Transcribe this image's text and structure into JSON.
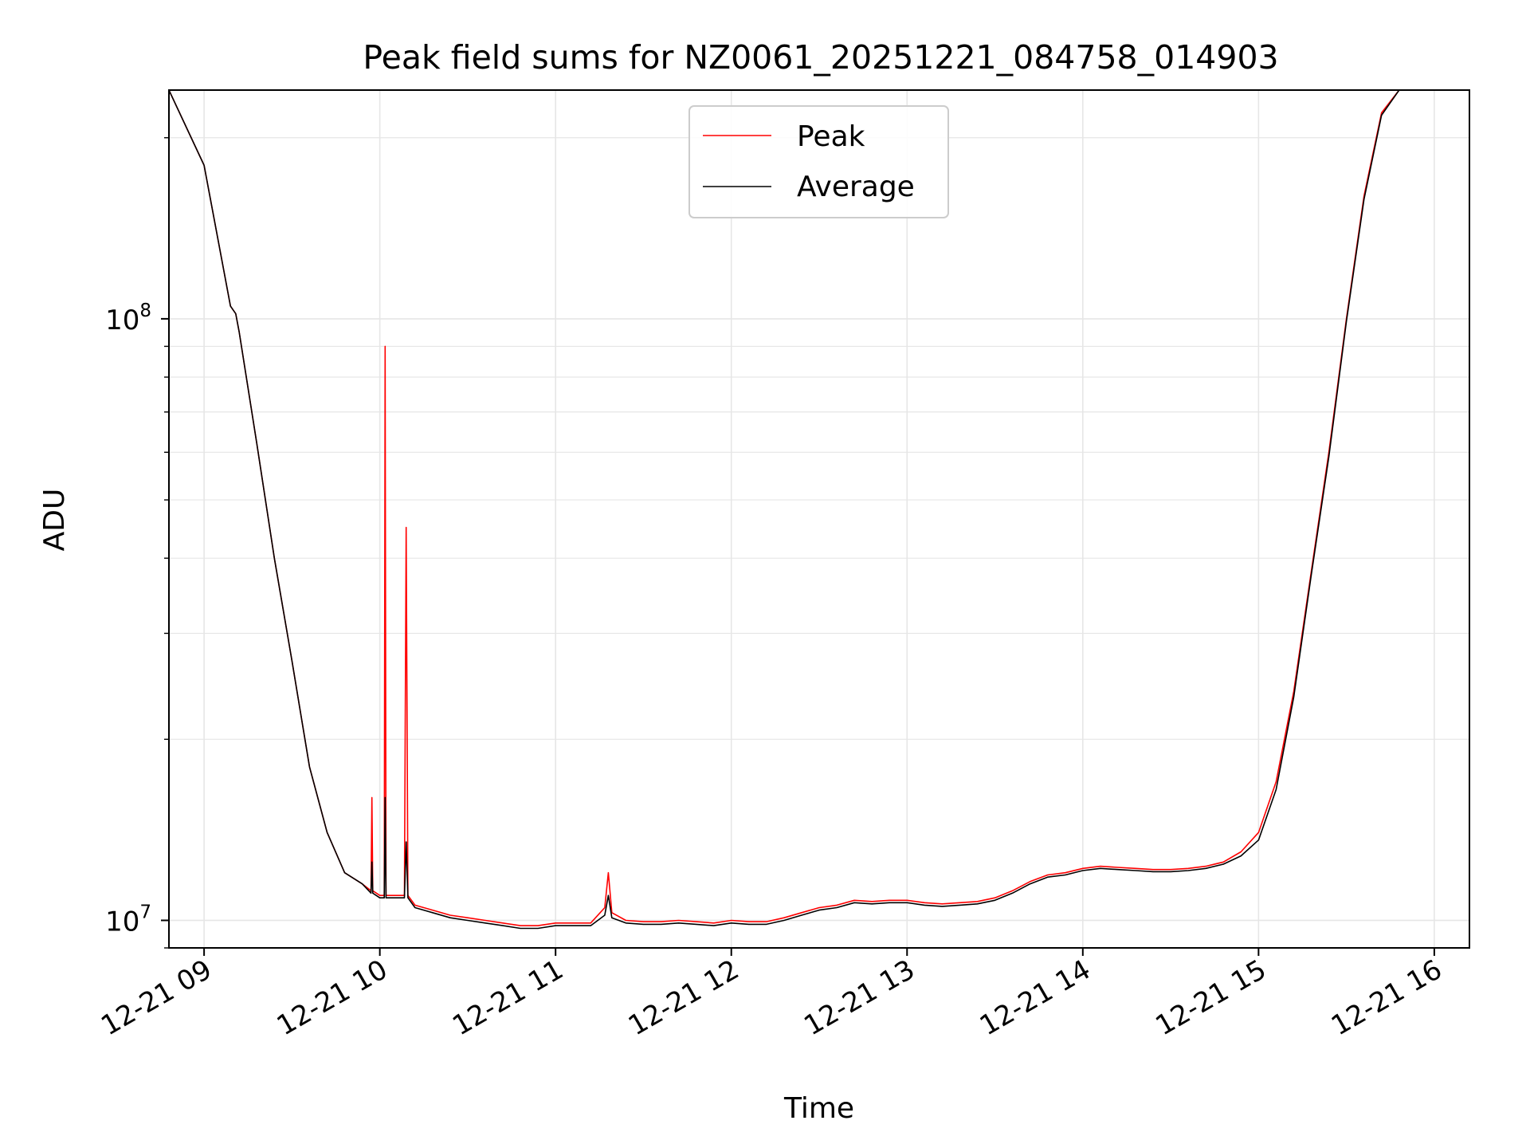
{
  "chart_data": {
    "type": "line",
    "title": "Peak field sums for NZ0061_20251221_084758_014903",
    "xlabel": "Time",
    "ylabel": "ADU",
    "yscale": "log",
    "xlim": [
      8.8,
      16.2
    ],
    "ylim": [
      9000000,
      240000000
    ],
    "grid": true,
    "legend_position": "top-center",
    "x_ticks": [
      {
        "value": 9,
        "label": "12-21 09"
      },
      {
        "value": 10,
        "label": "12-21 10"
      },
      {
        "value": 11,
        "label": "12-21 11"
      },
      {
        "value": 12,
        "label": "12-21 12"
      },
      {
        "value": 13,
        "label": "12-21 13"
      },
      {
        "value": 14,
        "label": "12-21 14"
      },
      {
        "value": 15,
        "label": "12-21 15"
      },
      {
        "value": 16,
        "label": "12-21 16"
      }
    ],
    "y_ticks": [
      {
        "value": 10000000,
        "base": "10",
        "exp": "7"
      },
      {
        "value": 100000000,
        "base": "10",
        "exp": "8"
      }
    ],
    "series": [
      {
        "name": "Peak",
        "color": "#ff0000",
        "x": [
          8.8,
          9.0,
          9.15,
          9.18,
          9.2,
          9.3,
          9.4,
          9.5,
          9.6,
          9.7,
          9.8,
          9.9,
          9.95,
          9.955,
          9.96,
          10.0,
          10.025,
          10.03,
          10.035,
          10.05,
          10.1,
          10.14,
          10.15,
          10.16,
          10.2,
          10.3,
          10.4,
          10.5,
          10.6,
          10.7,
          10.8,
          10.9,
          11.0,
          11.1,
          11.2,
          11.28,
          11.3,
          11.32,
          11.4,
          11.5,
          11.6,
          11.7,
          11.8,
          11.9,
          12.0,
          12.1,
          12.2,
          12.3,
          12.4,
          12.5,
          12.6,
          12.7,
          12.8,
          12.9,
          13.0,
          13.1,
          13.2,
          13.3,
          13.4,
          13.5,
          13.6,
          13.7,
          13.8,
          13.9,
          14.0,
          14.1,
          14.2,
          14.3,
          14.4,
          14.5,
          14.6,
          14.7,
          14.8,
          14.9,
          15.0,
          15.1,
          15.2,
          15.3,
          15.4,
          15.5,
          15.6,
          15.7,
          15.8,
          15.9,
          16.0,
          16.2
        ],
        "y": [
          240000000,
          180000000,
          105000000,
          102000000,
          95000000,
          62000000,
          40000000,
          27000000,
          18000000,
          14000000,
          12000000,
          11500000,
          11200000,
          16000000,
          11200000,
          11000000,
          11000000,
          90000000,
          11000000,
          11000000,
          11000000,
          11000000,
          45000000,
          11000000,
          10600000,
          10400000,
          10200000,
          10100000,
          10000000,
          9900000,
          9800000,
          9800000,
          9900000,
          9900000,
          9900000,
          10500000,
          12000000,
          10300000,
          10000000,
          9950000,
          9950000,
          10000000,
          9950000,
          9900000,
          10000000,
          9950000,
          9950000,
          10100000,
          10300000,
          10500000,
          10600000,
          10800000,
          10750000,
          10800000,
          10800000,
          10700000,
          10650000,
          10700000,
          10750000,
          10900000,
          11200000,
          11600000,
          11900000,
          12000000,
          12200000,
          12300000,
          12250000,
          12200000,
          12150000,
          12150000,
          12200000,
          12300000,
          12500000,
          13000000,
          14000000,
          17000000,
          24000000,
          38000000,
          60000000,
          100000000,
          160000000,
          220000000,
          240000000,
          240000000,
          240000000,
          240000000
        ]
      },
      {
        "name": "Average",
        "color": "#000000",
        "x": [
          8.8,
          9.0,
          9.15,
          9.18,
          9.2,
          9.3,
          9.4,
          9.5,
          9.6,
          9.7,
          9.8,
          9.9,
          9.95,
          9.955,
          9.96,
          10.0,
          10.025,
          10.03,
          10.035,
          10.05,
          10.1,
          10.14,
          10.15,
          10.16,
          10.2,
          10.3,
          10.4,
          10.5,
          10.6,
          10.7,
          10.8,
          10.9,
          11.0,
          11.1,
          11.2,
          11.28,
          11.3,
          11.32,
          11.4,
          11.5,
          11.6,
          11.7,
          11.8,
          11.9,
          12.0,
          12.1,
          12.2,
          12.3,
          12.4,
          12.5,
          12.6,
          12.7,
          12.8,
          12.9,
          13.0,
          13.1,
          13.2,
          13.3,
          13.4,
          13.5,
          13.6,
          13.7,
          13.8,
          13.9,
          14.0,
          14.1,
          14.2,
          14.3,
          14.4,
          14.5,
          14.6,
          14.7,
          14.8,
          14.9,
          15.0,
          15.1,
          15.2,
          15.3,
          15.4,
          15.5,
          15.6,
          15.7,
          15.8,
          15.9,
          16.0,
          16.2
        ],
        "y": [
          240000000,
          180000000,
          105000000,
          102000000,
          95000000,
          62000000,
          40000000,
          27000000,
          18000000,
          14000000,
          12000000,
          11500000,
          11100000,
          12500000,
          11100000,
          10900000,
          10900000,
          16000000,
          10900000,
          10900000,
          10900000,
          10900000,
          13500000,
          10900000,
          10500000,
          10300000,
          10100000,
          10000000,
          9900000,
          9800000,
          9700000,
          9700000,
          9800000,
          9800000,
          9800000,
          10200000,
          11000000,
          10100000,
          9900000,
          9850000,
          9850000,
          9900000,
          9850000,
          9800000,
          9900000,
          9850000,
          9850000,
          10000000,
          10200000,
          10400000,
          10500000,
          10700000,
          10650000,
          10700000,
          10700000,
          10600000,
          10550000,
          10600000,
          10650000,
          10800000,
          11100000,
          11500000,
          11800000,
          11900000,
          12100000,
          12200000,
          12150000,
          12100000,
          12050000,
          12050000,
          12100000,
          12200000,
          12400000,
          12800000,
          13600000,
          16500000,
          23500000,
          37500000,
          59000000,
          99000000,
          158000000,
          218000000,
          240000000,
          240000000,
          240000000,
          240000000
        ]
      }
    ]
  }
}
